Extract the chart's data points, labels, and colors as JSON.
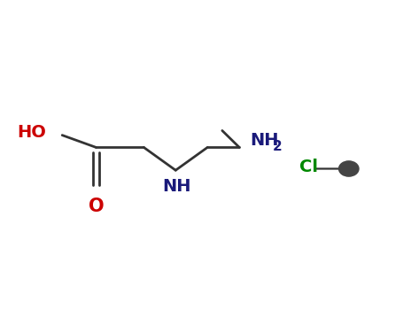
{
  "background_color": "#ffffff",
  "figsize": [
    4.55,
    3.5
  ],
  "dpi": 100,
  "bond_color": "#333333",
  "bond_lw": 2.0,
  "ho_color": "#cc0000",
  "o_color": "#cc0000",
  "nh_color": "#1a1a7a",
  "nh2_color": "#1a1a7a",
  "cl_color": "#008800",
  "h_color": "#444444",
  "ho_label": "HO",
  "o_label": "O",
  "nh_label": "NH",
  "nh2_label": "NH",
  "nh2_sub": "2",
  "cl_label": "Cl",
  "fontsize": 14
}
